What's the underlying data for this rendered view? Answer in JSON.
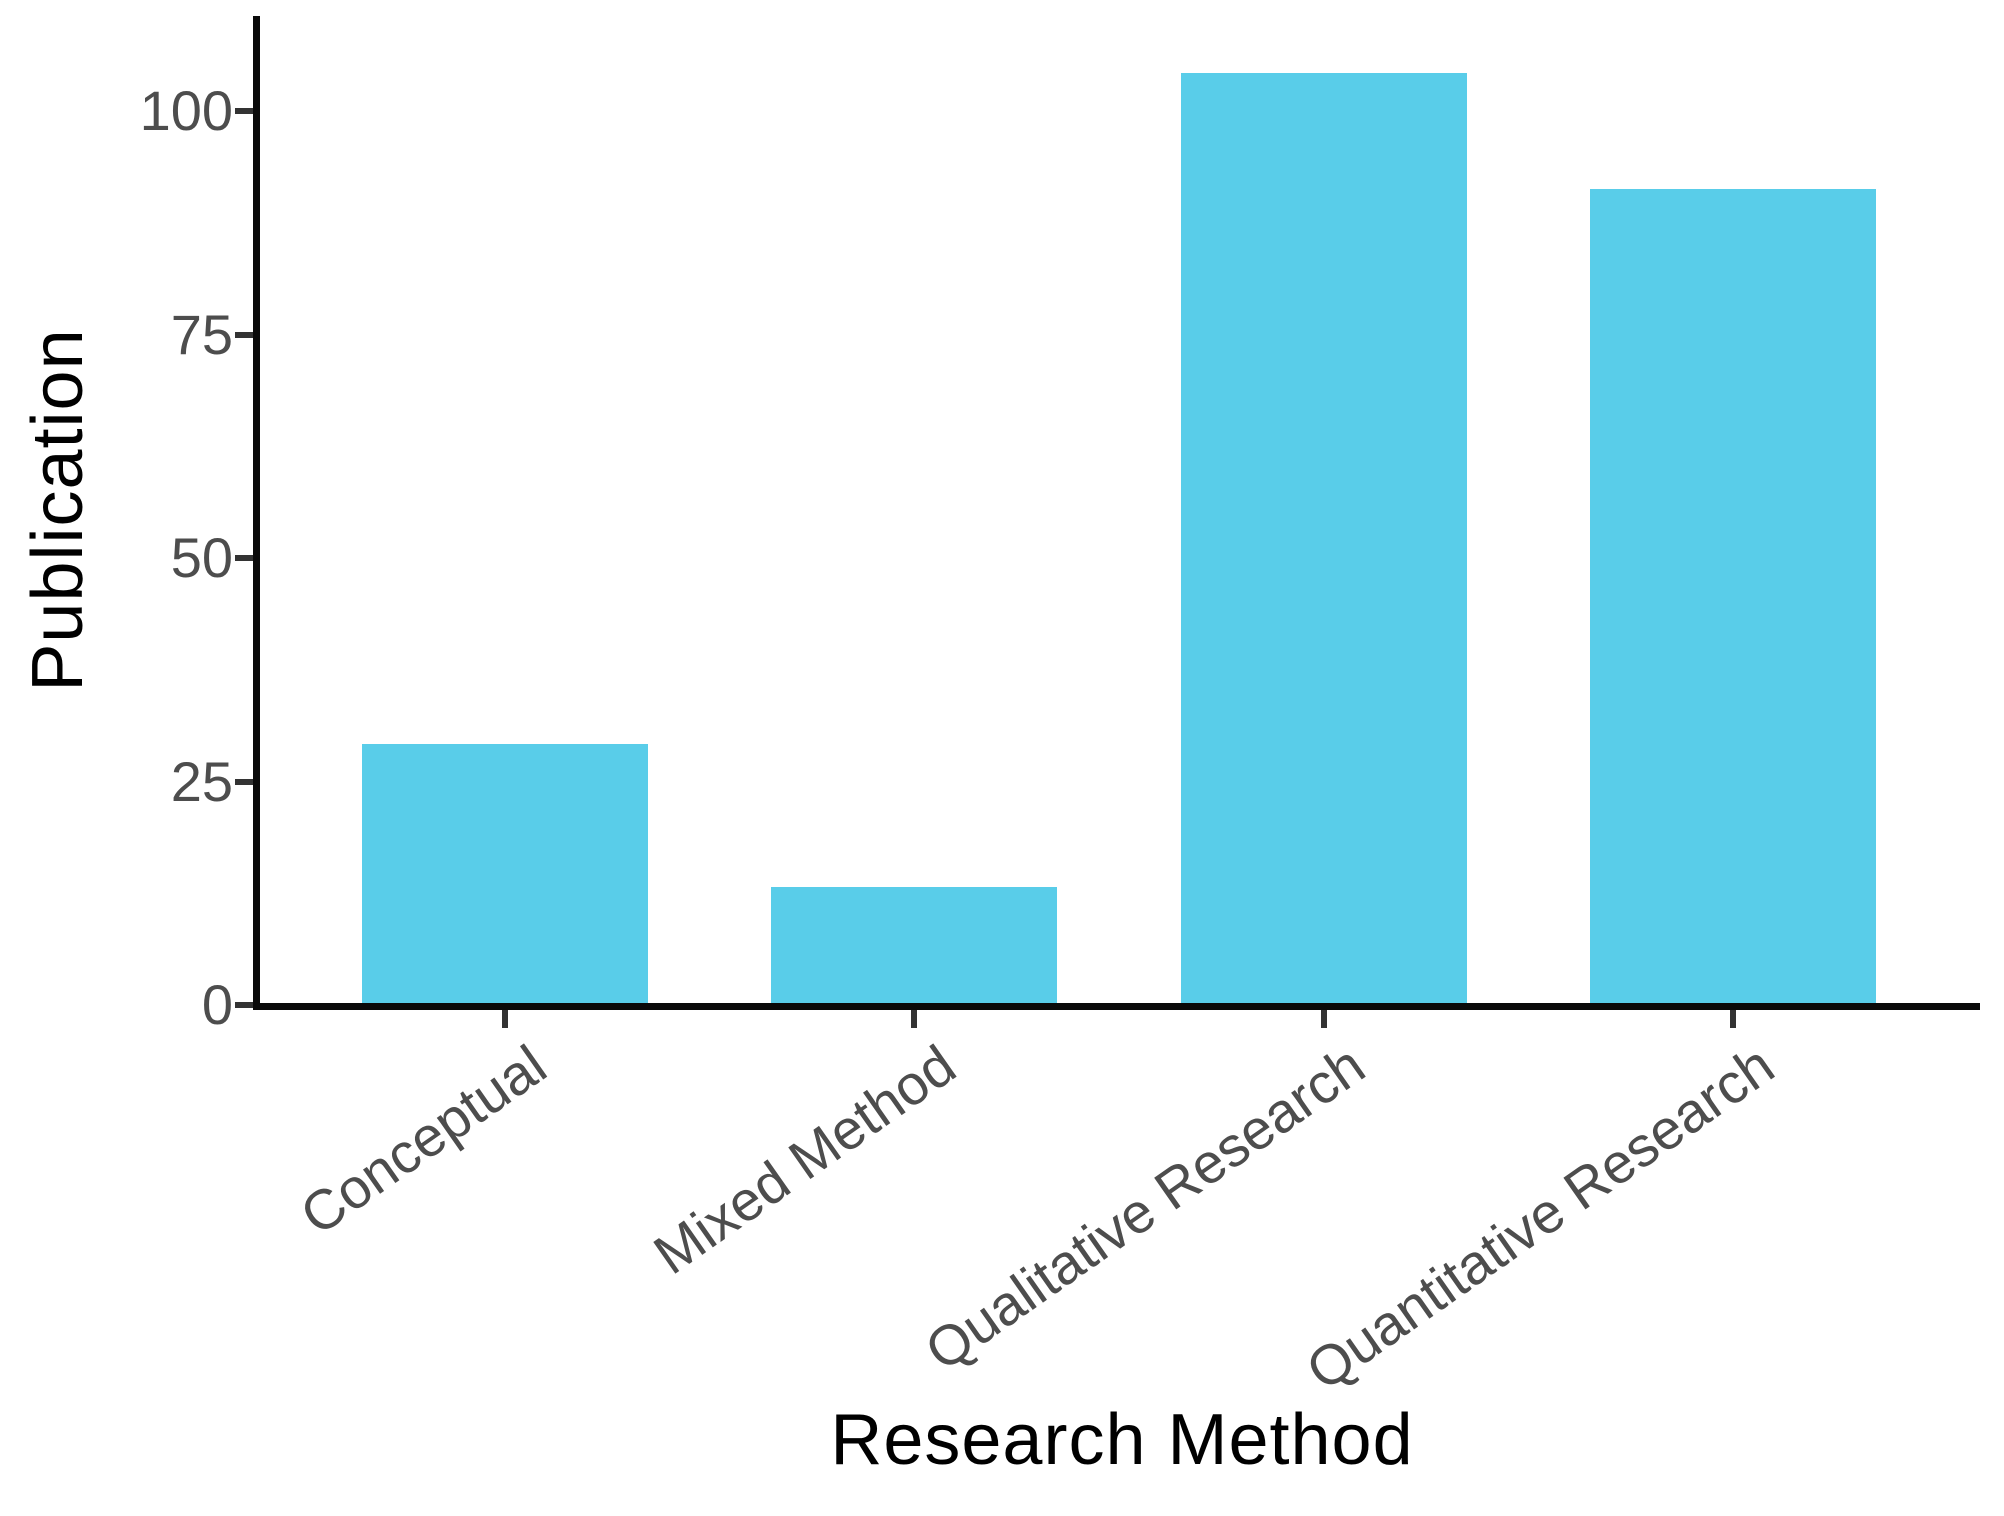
{
  "figure": {
    "background": "#FFFFFF"
  },
  "chart_data": {
    "type": "bar",
    "title": "",
    "xlabel": "Research Method",
    "ylabel": "Publication",
    "categories": [
      "Conceptual",
      "Mixed Method",
      "Qualitative Research",
      "Quantitative Research"
    ],
    "values": [
      29,
      13,
      104,
      91
    ],
    "y_ticks": [
      0,
      25,
      50,
      75,
      100
    ],
    "ylim": [
      0,
      110.5
    ],
    "grid": false,
    "legend_position": "none",
    "bar_fill": "#59CDE9",
    "axis_line_color": "#0A0A0A",
    "tick_mark_color": "#333333",
    "tick_label_color": "#4D4D4D",
    "axis_title_color": "#000000"
  }
}
